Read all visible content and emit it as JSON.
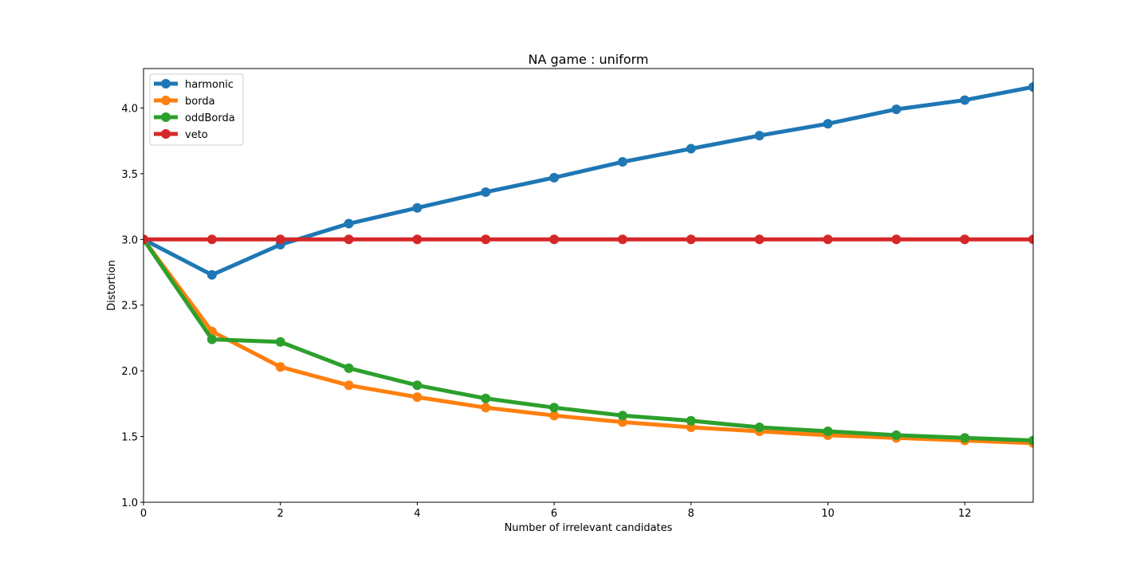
{
  "chart_data": {
    "type": "line",
    "title": "NA game : uniform",
    "xlabel": "Number of irrelevant candidates",
    "ylabel": "Distortion",
    "xlim": [
      0,
      13
    ],
    "ylim": [
      1.0,
      4.3
    ],
    "xticks": [
      0,
      2,
      4,
      6,
      8,
      10,
      12
    ],
    "xtick_labels": [
      "0",
      "2",
      "4",
      "6",
      "8",
      "10",
      "12"
    ],
    "yticks": [
      1.0,
      1.5,
      2.0,
      2.5,
      3.0,
      3.5,
      4.0
    ],
    "ytick_labels": [
      "1.0",
      "1.5",
      "2.0",
      "2.5",
      "3.0",
      "3.5",
      "4.0"
    ],
    "grid": false,
    "legend_position": "top-left",
    "x": [
      0,
      1,
      2,
      3,
      4,
      5,
      6,
      7,
      8,
      9,
      10,
      11,
      12,
      13
    ],
    "series": [
      {
        "name": "harmonic",
        "color": "#1f77b4",
        "values": [
          3.0,
          2.73,
          2.96,
          3.12,
          3.24,
          3.36,
          3.47,
          3.59,
          3.69,
          3.79,
          3.88,
          3.99,
          4.06,
          4.16
        ]
      },
      {
        "name": "borda",
        "color": "#ff7f0e",
        "values": [
          3.0,
          2.3,
          2.03,
          1.89,
          1.8,
          1.72,
          1.66,
          1.61,
          1.57,
          1.54,
          1.51,
          1.49,
          1.47,
          1.45
        ]
      },
      {
        "name": "oddBorda",
        "color": "#2ca02c",
        "values": [
          3.0,
          2.24,
          2.22,
          2.02,
          1.89,
          1.79,
          1.72,
          1.66,
          1.62,
          1.57,
          1.54,
          1.51,
          1.49,
          1.47
        ]
      },
      {
        "name": "veto",
        "color": "#d62728",
        "values": [
          3.0,
          3.0,
          3.0,
          3.0,
          3.0,
          3.0,
          3.0,
          3.0,
          3.0,
          3.0,
          3.0,
          3.0,
          3.0,
          3.0
        ]
      }
    ]
  }
}
